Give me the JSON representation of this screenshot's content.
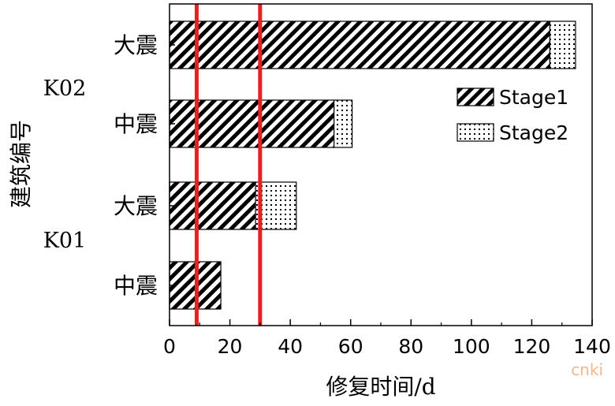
{
  "chart_data": {
    "type": "bar",
    "orientation": "horizontal",
    "stacked": true,
    "ylabel": "建筑编号",
    "xlabel": "修复时间/d",
    "xlim": [
      0,
      140
    ],
    "xticks": [
      0,
      20,
      40,
      60,
      80,
      100,
      120,
      140
    ],
    "groups": [
      {
        "label": "K02",
        "categories": [
          "大震",
          "中震"
        ]
      },
      {
        "label": "K01",
        "categories": [
          "大震",
          "中震"
        ]
      }
    ],
    "bars": [
      {
        "group": "K02",
        "category": "大震",
        "Stage1": 126,
        "Stage2": 8.5
      },
      {
        "group": "K02",
        "category": "中震",
        "Stage1": 54.5,
        "Stage2": 6
      },
      {
        "group": "K01",
        "category": "大震",
        "Stage1": 28.5,
        "Stage2": 13.5
      },
      {
        "group": "K01",
        "category": "中震",
        "Stage1": 17,
        "Stage2": 0
      }
    ],
    "series": [
      {
        "name": "Stage1",
        "pattern": "diagonal-hatch"
      },
      {
        "name": "Stage2",
        "pattern": "dots"
      }
    ],
    "reference_lines": [
      {
        "x": 9,
        "color": "#e8201f"
      },
      {
        "x": 30,
        "color": "#e8201f"
      }
    ],
    "legend_position": "top-right",
    "grid": false
  },
  "watermark": "cnki"
}
